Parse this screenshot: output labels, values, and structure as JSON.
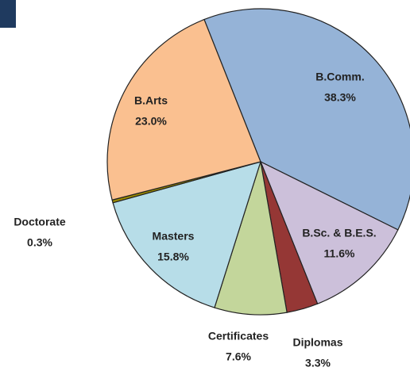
{
  "chart_data": {
    "type": "pie",
    "categories": [
      "B.Comm.",
      "B.Sc. & B.E.S.",
      "Diplomas",
      "Certificates",
      "Masters",
      "Doctorate",
      "B.Arts"
    ],
    "values": [
      38.3,
      11.6,
      3.3,
      7.6,
      15.8,
      0.3,
      23.0
    ],
    "value_labels": [
      "38.3%",
      "11.6%",
      "3.3%",
      "7.6%",
      "15.8%",
      "0.3%",
      "23.0%"
    ],
    "colors": [
      "#95b3d7",
      "#ccc0da",
      "#953735",
      "#c3d69b",
      "#b7dde8",
      "#9b8b00",
      "#fac090"
    ]
  }
}
